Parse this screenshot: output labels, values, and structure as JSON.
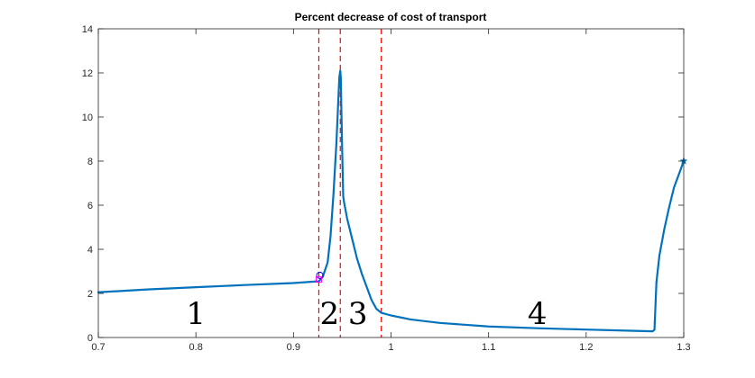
{
  "chart_data": {
    "type": "line",
    "title": "Percent decrease of cost of transport",
    "xlabel": "",
    "ylabel": "",
    "xlim": [
      0.7,
      1.3
    ],
    "ylim": [
      0,
      14
    ],
    "xticks": [
      "0.7",
      "0.8",
      "0.9",
      "1",
      "1.1",
      "1.2",
      "1.3"
    ],
    "yticks": [
      "0",
      "2",
      "4",
      "6",
      "8",
      "10",
      "12",
      "14"
    ],
    "grid": false,
    "legend": "none",
    "series": [
      {
        "color": "#0072bd",
        "x": [
          0.7,
          0.75,
          0.8,
          0.85,
          0.9,
          0.926,
          0.93,
          0.935,
          0.938,
          0.941,
          0.944,
          0.946,
          0.947,
          0.948,
          0.9485,
          0.949,
          0.95,
          0.951,
          0.952,
          0.955,
          0.96,
          0.965,
          0.97,
          0.975,
          0.98,
          0.985,
          0.99,
          1.0,
          1.02,
          1.05,
          1.1,
          1.15,
          1.2,
          1.25,
          1.268,
          1.27,
          1.272,
          1.275,
          1.28,
          1.285,
          1.29,
          1.295,
          1.3
        ],
        "y": [
          2.05,
          2.18,
          2.28,
          2.38,
          2.47,
          2.55,
          2.75,
          3.4,
          4.6,
          6.5,
          8.8,
          10.8,
          11.8,
          12.1,
          11.8,
          10.6,
          8.3,
          6.4,
          6.1,
          5.4,
          4.5,
          3.6,
          2.9,
          2.3,
          1.7,
          1.3,
          1.12,
          1.0,
          0.82,
          0.66,
          0.5,
          0.42,
          0.36,
          0.3,
          0.28,
          0.35,
          2.5,
          3.7,
          4.9,
          5.9,
          6.8,
          7.4,
          8.0
        ]
      }
    ],
    "reference_lines": {
      "color": "#ff0000",
      "style": "dashed",
      "x": [
        0.926,
        0.948,
        0.99
      ]
    },
    "markers": [
      {
        "shape": "circle",
        "color": "#0000ff",
        "x": 0.927,
        "y": 2.82
      },
      {
        "shape": "square",
        "color": "#ff00ff",
        "x": 0.926,
        "y": 2.63
      },
      {
        "shape": "star",
        "color": "#0072bd",
        "x": 1.3,
        "y": 8.0
      }
    ],
    "annotations": [
      {
        "text": "1",
        "x": 0.8,
        "y": 1.1
      },
      {
        "text": "2",
        "x": 0.937,
        "y": 1.1
      },
      {
        "text": "3",
        "x": 0.966,
        "y": 1.1
      },
      {
        "text": "4",
        "x": 1.15,
        "y": 1.1
      }
    ]
  }
}
